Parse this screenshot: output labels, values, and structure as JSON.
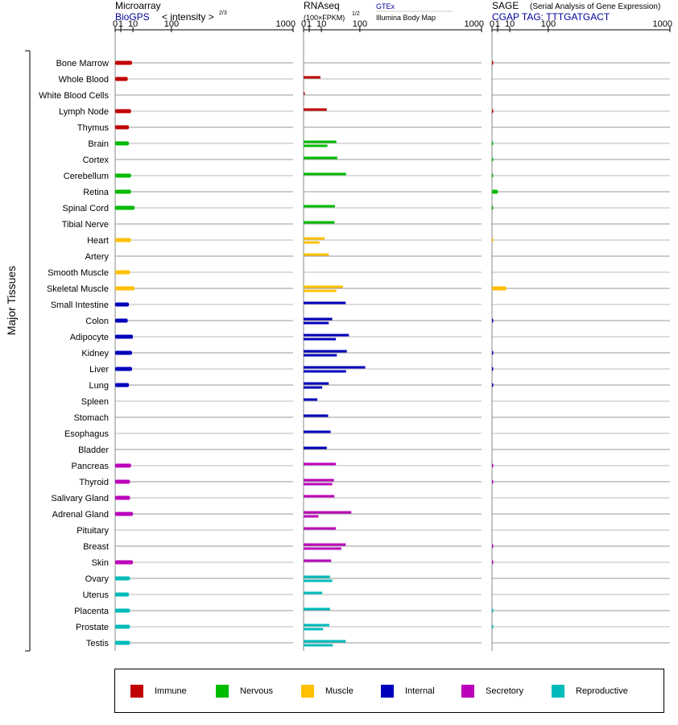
{
  "panels": {
    "microarray": {
      "title": "Microarray",
      "source": "BioGPS",
      "unit": "< intensity >",
      "unit_exp": "2/3"
    },
    "rnaseq": {
      "title": "RNAseq",
      "unit": "(100×FPKM)",
      "unit_exp": "1/2",
      "source1": "GTEx",
      "source2": "Illumina Body Map"
    },
    "sage": {
      "title": "SAGE",
      "subtitle": "(Serial Analysis of Gene Expression)",
      "tag": "CGAP TAG: TTTGATGACT"
    }
  },
  "axis_label": "Major Tissues",
  "chart_data": {
    "type": "bar",
    "scale": "root",
    "x_ticks": [
      0,
      1,
      10,
      100,
      1000
    ],
    "xlim": [
      0,
      1000
    ],
    "categories": [
      "Bone Marrow",
      "Whole Blood",
      "White Blood Cells",
      "Lymph Node",
      "Thymus",
      "Brain",
      "Cortex",
      "Cerebellum",
      "Retina",
      "Spinal Cord",
      "Tibial Nerve",
      "Heart",
      "Artery",
      "Smooth Muscle",
      "Skeletal Muscle",
      "Small Intestine",
      "Colon",
      "Adipocyte",
      "Kidney",
      "Liver",
      "Lung",
      "Spleen",
      "Stomach",
      "Esophagus",
      "Bladder",
      "Pancreas",
      "Thyroid",
      "Salivary Gland",
      "Adrenal Gland",
      "Pituitary",
      "Breast",
      "Skin",
      "Ovary",
      "Uterus",
      "Placenta",
      "Prostate",
      "Testis"
    ],
    "groups": [
      "Immune",
      "Immune",
      "Immune",
      "Immune",
      "Immune",
      "Nervous",
      "Nervous",
      "Nervous",
      "Nervous",
      "Nervous",
      "Nervous",
      "Muscle",
      "Muscle",
      "Muscle",
      "Muscle",
      "Internal",
      "Internal",
      "Internal",
      "Internal",
      "Internal",
      "Internal",
      "Internal",
      "Internal",
      "Internal",
      "Internal",
      "Secretory",
      "Secretory",
      "Secretory",
      "Secretory",
      "Secretory",
      "Secretory",
      "Secretory",
      "Reproductive",
      "Reproductive",
      "Reproductive",
      "Reproductive",
      "Reproductive"
    ],
    "series": [
      {
        "name": "BioGPS",
        "values": [
          9,
          5,
          null,
          8,
          6,
          6,
          null,
          8,
          8,
          12,
          null,
          8,
          null,
          7,
          12,
          6,
          5,
          10,
          9,
          9,
          6,
          null,
          null,
          null,
          null,
          8,
          7,
          7,
          10,
          null,
          null,
          10,
          7,
          6,
          7,
          7,
          7
        ]
      },
      {
        "name": "GTEx",
        "values": [
          null,
          9,
          0.05,
          17,
          null,
          34,
          36,
          57,
          null,
          31,
          30,
          14,
          20,
          null,
          49,
          56,
          26,
          65,
          59,
          120,
          20,
          6,
          19,
          23,
          17,
          33,
          29,
          30,
          72,
          33,
          56,
          24,
          22,
          11,
          22,
          21,
          56
        ]
      },
      {
        "name": "Illumina Body Map",
        "values": [
          null,
          null,
          null,
          null,
          null,
          18,
          null,
          null,
          null,
          null,
          null,
          8,
          null,
          null,
          34,
          null,
          20,
          33,
          35,
          57,
          11,
          null,
          null,
          null,
          null,
          null,
          26,
          null,
          7,
          null,
          45,
          null,
          26,
          null,
          null,
          12,
          27
        ]
      },
      {
        "name": "SAGE",
        "values": [
          0.02,
          null,
          null,
          0.02,
          null,
          0.02,
          0.02,
          0.02,
          1.1,
          0.02,
          null,
          0.01,
          null,
          null,
          6.5,
          null,
          0.02,
          null,
          0.02,
          0.02,
          0.02,
          null,
          null,
          null,
          null,
          0.02,
          0.02,
          null,
          null,
          null,
          0.02,
          0.02,
          null,
          null,
          0.02,
          0.02,
          null
        ]
      }
    ],
    "legend": [
      {
        "name": "Immune",
        "color": "#c00000"
      },
      {
        "name": "Nervous",
        "color": "#00bb00"
      },
      {
        "name": "Muscle",
        "color": "#ffc000"
      },
      {
        "name": "Internal",
        "color": "#0000bb"
      },
      {
        "name": "Secretory",
        "color": "#bb00bb"
      },
      {
        "name": "Reproductive",
        "color": "#00bbbb"
      }
    ]
  }
}
